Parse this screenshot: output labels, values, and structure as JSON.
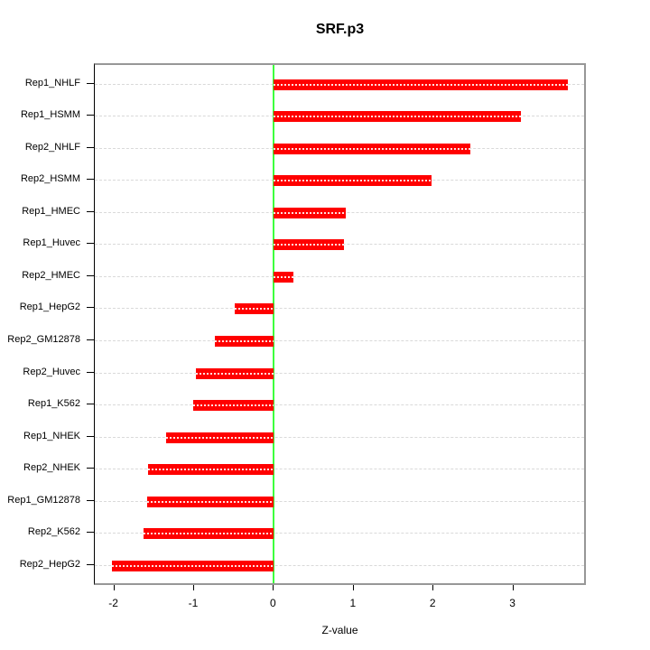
{
  "chart_data": {
    "type": "bar",
    "orientation": "horizontal",
    "title": "SRF.p3",
    "xlabel": "Z-value",
    "ylabel": "",
    "categories": [
      "Rep1_NHLF",
      "Rep1_HSMM",
      "Rep2_NHLF",
      "Rep2_HSMM",
      "Rep1_HMEC",
      "Rep1_Huvec",
      "Rep2_HMEC",
      "Rep1_HepG2",
      "Rep2_GM12878",
      "Rep2_Huvec",
      "Rep1_K562",
      "Rep1_NHEK",
      "Rep2_NHEK",
      "Rep1_GM12878",
      "Rep2_K562",
      "Rep2_HepG2"
    ],
    "values": [
      3.68,
      3.09,
      2.46,
      1.98,
      0.9,
      0.88,
      0.25,
      -0.49,
      -0.74,
      -0.98,
      -1.01,
      -1.35,
      -1.58,
      -1.59,
      -1.63,
      -2.03
    ],
    "x_ticks": [
      -2,
      -1,
      0,
      1,
      2,
      3
    ],
    "xlim": [
      -2.24,
      3.93
    ],
    "grid": true,
    "zero_reference_line": 0,
    "colors": {
      "bar": "#ff0000",
      "zero_line": "#3dff3d",
      "grid": "#d9d9d9",
      "box": "#979797",
      "axis": "#000000",
      "background": "#ffffff"
    }
  }
}
